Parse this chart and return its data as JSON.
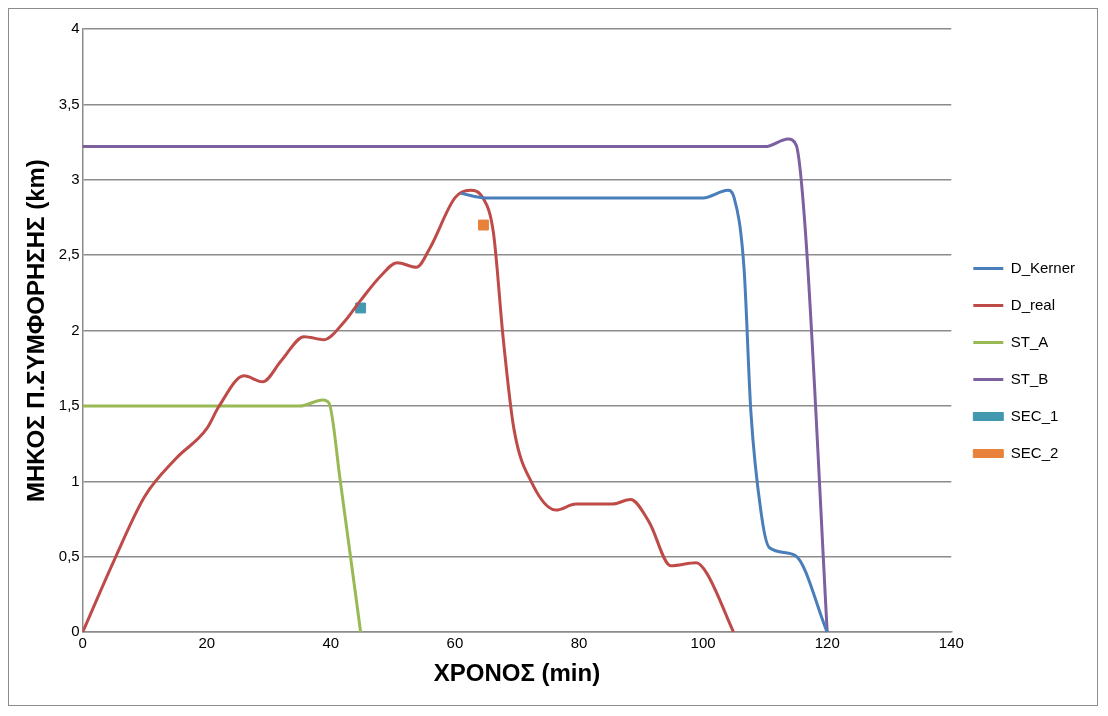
{
  "chart_data": {
    "type": "line",
    "xlabel": "ΧΡΟΝΟΣ (min)",
    "ylabel": "ΜΗΚΟΣ Π.ΣΥΜΦΟΡΗΣΗΣ (km)",
    "xlim": [
      0,
      140
    ],
    "xticks": [
      0,
      20,
      40,
      60,
      80,
      100,
      120,
      140
    ],
    "ylim": [
      0,
      4
    ],
    "yticks": [
      0,
      {
        "value": 0.5,
        "label": "0,5"
      },
      1,
      {
        "value": 1.5,
        "label": "1,5"
      },
      2,
      {
        "value": 2.5,
        "label": "2,5"
      },
      3,
      {
        "value": 3.5,
        "label": "3,5"
      },
      4
    ],
    "grid": "y",
    "legend": "right",
    "line_style": "solid",
    "series": [
      {
        "name": "D_Kerner",
        "color": "#4a7ebb",
        "x": [
          61,
          65,
          80,
          100,
          104,
          105,
          106.6,
          107.7,
          109.5,
          110.7,
          114.8,
          120
        ],
        "values": [
          2.91,
          2.88,
          2.88,
          2.88,
          2.93,
          2.88,
          2.41,
          1.46,
          0.75,
          0.56,
          0.51,
          0
        ]
      },
      {
        "name": "D_real",
        "color": "#be4b48",
        "x": [
          0,
          5,
          10,
          15,
          20,
          22,
          26,
          29,
          32,
          35.7,
          38.9,
          42,
          44.8,
          48,
          50.7,
          53.8,
          56,
          60,
          62.5,
          64.5,
          66.2,
          67.8,
          69.5,
          72.4,
          76.3,
          79.5,
          85.4,
          88.3,
          91.3,
          94.8,
          98.9,
          100.6,
          104.9
        ],
        "values": [
          0,
          0.47,
          0.9,
          1.15,
          1.35,
          1.5,
          1.7,
          1.66,
          1.8,
          1.96,
          1.94,
          2.05,
          2.2,
          2.36,
          2.45,
          2.42,
          2.55,
          2.88,
          2.93,
          2.88,
          2.65,
          1.94,
          1.35,
          0.99,
          0.81,
          0.85,
          0.85,
          0.88,
          0.73,
          0.44,
          0.46,
          0.39,
          0
        ]
      },
      {
        "name": "ST_A",
        "color": "#98b954",
        "x": [
          0,
          35,
          38.7,
          39.7,
          41.5,
          44.8
        ],
        "values": [
          1.5,
          1.5,
          1.54,
          1.52,
          1.01,
          0
        ]
      },
      {
        "name": "ST_B",
        "color": "#7d60a0",
        "x": [
          0,
          110,
          113.7,
          115,
          116.5,
          120
        ],
        "values": [
          3.22,
          3.22,
          3.27,
          3.23,
          2.65,
          0
        ]
      },
      {
        "name": "SEC_1",
        "color": "#4198af",
        "type": "scatter",
        "marker": "square",
        "x": [
          44.8
        ],
        "values": [
          2.15
        ]
      },
      {
        "name": "SEC_2",
        "color": "#e8823a",
        "type": "scatter",
        "marker": "square",
        "x": [
          64.6
        ],
        "values": [
          2.7
        ]
      }
    ]
  }
}
